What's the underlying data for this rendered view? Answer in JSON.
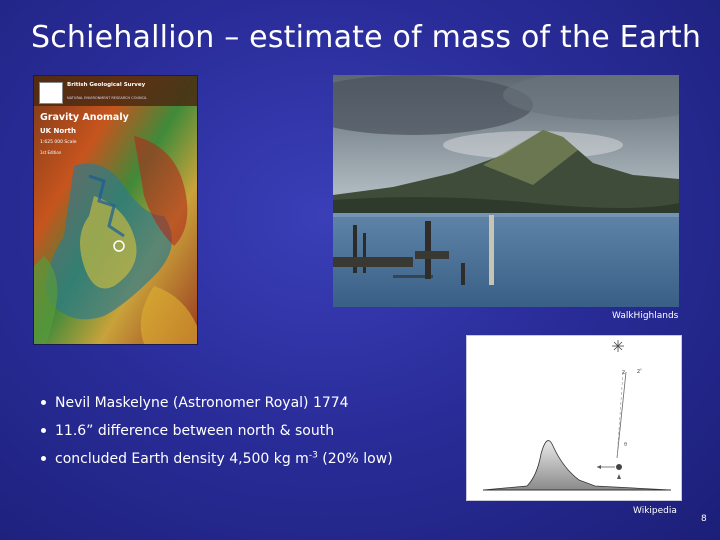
{
  "slide": {
    "title": "Schiehallion – estimate of mass of the Earth",
    "page_number": "8"
  },
  "map_poster": {
    "org_name": "British Geological Survey",
    "org_subtitle": "NATURAL ENVIRONMENT RESEARCH COUNCIL",
    "map_title": "Gravity Anomaly",
    "region": "UK North",
    "scale": "1:625 000 Scale",
    "edition": "1st Edition"
  },
  "photo": {
    "credit": "WalkHighlands"
  },
  "diagram": {
    "credit": "Wikipedia"
  },
  "bullets": [
    {
      "text": "Nevil Maskelyne (Astronomer Royal) 1774"
    },
    {
      "text": "11.6” difference between north & south"
    },
    {
      "text_before": "concluded Earth density 4,500 kg m",
      "superscript": "-3",
      "text_after": " (20% low)"
    }
  ],
  "colors": {
    "background": "#2a2d9a",
    "text": "#ffffff"
  }
}
